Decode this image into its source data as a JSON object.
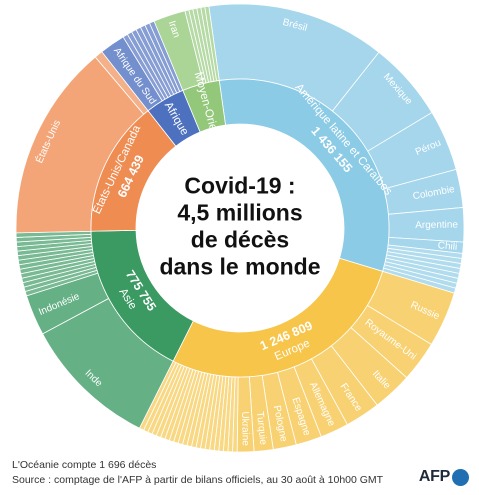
{
  "chart_data": {
    "type": "sunburst",
    "title": "Covid-19 : 4,5 millions de décès dans le monde",
    "title_lines": [
      "Covid-19 :",
      "4,5 millions",
      "de décès",
      "dans le monde"
    ],
    "regions": [
      {
        "name": "Amérique latine et Caraïbes",
        "value_label": "1 436 155",
        "value": 1436155,
        "color": "#8ccbe6",
        "children": [
          {
            "name": "Brésil",
            "value": 579000
          },
          {
            "name": "Mexique",
            "value": 258000
          },
          {
            "name": "Pérou",
            "value": 198000
          },
          {
            "name": "Colombie",
            "value": 124000
          },
          {
            "name": "Argentine",
            "value": 111000
          },
          {
            "name": "Chili",
            "value": 36500
          },
          {
            "name": "",
            "value": 129655,
            "small": 8
          }
        ]
      },
      {
        "name": "Europe",
        "value_label": "1 246 809",
        "value": 1246809,
        "color": "#f6c54a",
        "children": [
          {
            "name": "Russie",
            "value": 180000
          },
          {
            "name": "Royaume-Uni",
            "value": 132500
          },
          {
            "name": "Italie",
            "value": 129000
          },
          {
            "name": "France",
            "value": 114000
          },
          {
            "name": "Allemagne",
            "value": 92000
          },
          {
            "name": "Espagne",
            "value": 84000
          },
          {
            "name": "Pologne",
            "value": 75000
          },
          {
            "name": "Turquie",
            "value": 62000
          },
          {
            "name": "Ukraine",
            "value": 54000
          },
          {
            "name": "",
            "value": 324309,
            "small": 22
          }
        ]
      },
      {
        "name": "Asie",
        "value_label": "775 755",
        "value": 775755,
        "color": "#3a9a62",
        "children": [
          {
            "name": "Inde",
            "value": 439000
          },
          {
            "name": "Indonésie",
            "value": 132000
          },
          {
            "name": "",
            "value": 204755,
            "small": 14
          }
        ]
      },
      {
        "name": "États-Unis/Canada",
        "value_label": "664 439",
        "value": 664439,
        "color": "#ef8c52",
        "children": [
          {
            "name": "États-Unis",
            "value": 637500
          },
          {
            "name": "",
            "value": 26939,
            "small": 1
          }
        ]
      },
      {
        "name": "Afrique",
        "value_label": "",
        "value": 194000,
        "color": "#4d70bf",
        "children": [
          {
            "name": "Afrique du Sud",
            "value": 83000
          },
          {
            "name": "",
            "value": 111000,
            "small": 7
          }
        ]
      },
      {
        "name": "Moyen-Orient",
        "value_label": "",
        "value": 182000,
        "color": "#93c87a",
        "children": [
          {
            "name": "Iran",
            "value": 104000
          },
          {
            "name": "",
            "value": 78000,
            "small": 6
          }
        ]
      }
    ]
  },
  "footer": {
    "note": "L'Océanie compte 1 696 décès",
    "source": "Source : comptage de l'AFP à partir de bilans officiels, au 30 août à 10h00 GMT",
    "logo_text": "AFP"
  }
}
